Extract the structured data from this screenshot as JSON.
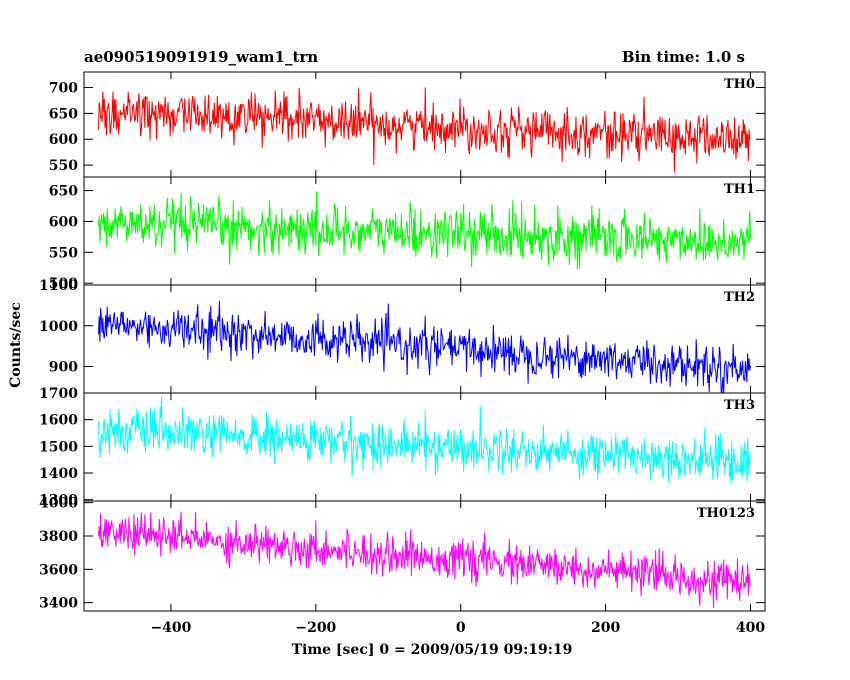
{
  "chart_data": {
    "type": "line",
    "title_left": "ae090519091919_wam1_trn",
    "title_right": "Bin time: 1.0 s",
    "xlabel": "Time [sec] 0 = 2009/05/19 09:19:19",
    "ylabel": "Counts/sec",
    "xlim": [
      -520,
      420
    ],
    "data_x_range": [
      -500,
      400
    ],
    "bin_time_s": 1.0,
    "x_ticks": [
      -400,
      -200,
      0,
      200,
      400
    ],
    "x_tick_labels": [
      "−400",
      "−200",
      "0",
      "200",
      "400"
    ],
    "grid": false,
    "panels": [
      {
        "name": "TH0",
        "color": "#ff0000",
        "ylim": [
          527,
          730
        ],
        "y_ticks": [
          550,
          600,
          650,
          700
        ],
        "y_tick_labels": [
          "550",
          "600",
          "650",
          "700"
        ],
        "trend_start": 655,
        "trend_end": 598,
        "noise_sd": 22
      },
      {
        "name": "TH1",
        "color": "#00ff00",
        "ylim": [
          497,
          672
        ],
        "y_ticks": [
          500,
          550,
          600,
          650
        ],
        "y_tick_labels": [
          "500",
          "550",
          "600",
          "650"
        ],
        "trend_start": 596,
        "trend_end": 567,
        "noise_sd": 20
      },
      {
        "name": "TH2",
        "color": "#0000ff",
        "ylim": [
          835,
          1100
        ],
        "y_ticks": [
          900,
          1000,
          1100
        ],
        "y_tick_labels": [
          "900",
          "1000",
          "1100"
        ],
        "trend_start": 1005,
        "trend_end": 893,
        "noise_sd": 26
      },
      {
        "name": "TH3",
        "color": "#00ffff",
        "ylim": [
          1295,
          1700
        ],
        "y_ticks": [
          1300,
          1400,
          1500,
          1600,
          1700
        ],
        "y_tick_labels": [
          "1300",
          "1400",
          "1500",
          "1600",
          "1700"
        ],
        "trend_start": 1560,
        "trend_end": 1445,
        "noise_sd": 42
      },
      {
        "name": "TH0123",
        "color": "#ff00ff",
        "ylim": [
          3350,
          4010
        ],
        "y_ticks": [
          3400,
          3600,
          3800,
          4000
        ],
        "y_tick_labels": [
          "3400",
          "3600",
          "3800",
          "4000"
        ],
        "trend_start": 3830,
        "trend_end": 3520,
        "noise_sd": 58
      }
    ]
  }
}
